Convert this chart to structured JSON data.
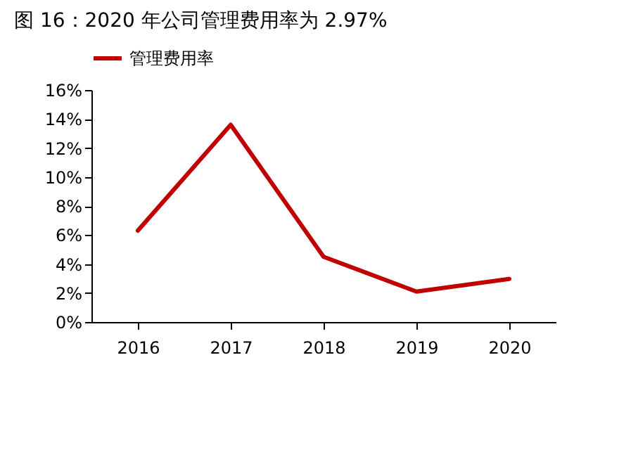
{
  "chart_data": {
    "type": "line",
    "title": "图 16：2020 年公司管理费用率为 2.97%",
    "categories": [
      "2016",
      "2017",
      "2018",
      "2019",
      "2020"
    ],
    "series": [
      {
        "name": "管理费用率",
        "color": "#c00000",
        "values": [
          6.3,
          13.6,
          4.5,
          2.1,
          2.97
        ]
      }
    ],
    "ylim": [
      0,
      16
    ],
    "yticks": [
      {
        "value": 0,
        "label": "0%"
      },
      {
        "value": 2,
        "label": "2%"
      },
      {
        "value": 4,
        "label": "4%"
      },
      {
        "value": 6,
        "label": "6%"
      },
      {
        "value": 8,
        "label": "8%"
      },
      {
        "value": 10,
        "label": "10%"
      },
      {
        "value": 12,
        "label": "12%"
      },
      {
        "value": 14,
        "label": "14%"
      },
      {
        "value": 16,
        "label": "16%"
      }
    ],
    "grid": false,
    "legend": "top",
    "marker": "none",
    "line_style": "solid"
  }
}
